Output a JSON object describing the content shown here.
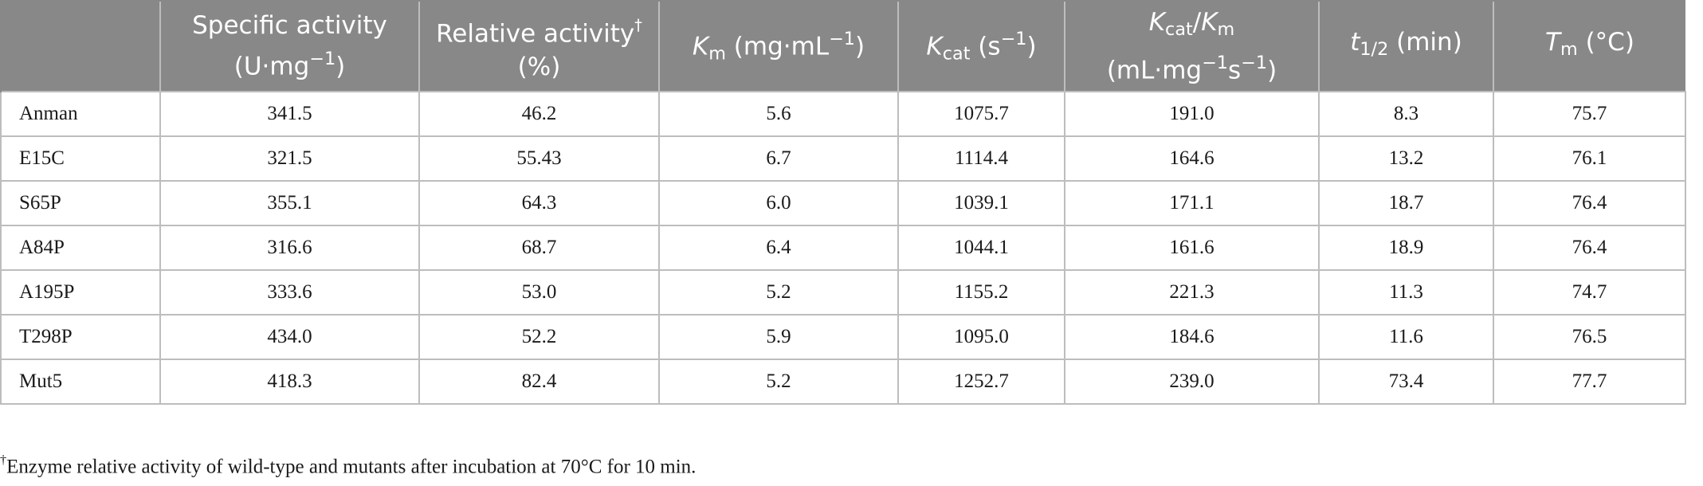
{
  "table": {
    "headers": {
      "specific_activity": {
        "line1": "Specific activity",
        "line2": "(U·mg",
        "exp": "−1",
        "line2_end": ")"
      },
      "relative_activity": {
        "line1": "Relative activity",
        "dagger": "†",
        "line2": "(%)"
      },
      "km": {
        "sym": "K",
        "sub": "m",
        "rest": " (mg·mL",
        "exp": "−1",
        "end": ")"
      },
      "kcat": {
        "sym": "K",
        "sub": "cat",
        "rest": " (s",
        "exp": "−1",
        "end": ")"
      },
      "kcat_km": {
        "sym1": "K",
        "sub1": "cat",
        "slash": "/",
        "sym2": "K",
        "sub2": "m",
        "line2a": "(mL·mg",
        "exp1": "−1",
        "line2b": "s",
        "exp2": "−1",
        "line2c": ")"
      },
      "half_life": {
        "sym": "t",
        "sub": "1/2",
        "rest": " (min)"
      },
      "tm": {
        "sym": "T",
        "sub": "m",
        "rest": " (°C)"
      }
    },
    "rows": [
      {
        "name": "Anman",
        "values": [
          "341.5",
          "46.2",
          "5.6",
          "1075.7",
          "191.0",
          "8.3",
          "75.7"
        ]
      },
      {
        "name": "E15C",
        "values": [
          "321.5",
          "55.43",
          "6.7",
          "1114.4",
          "164.6",
          "13.2",
          "76.1"
        ]
      },
      {
        "name": "S65P",
        "values": [
          "355.1",
          "64.3",
          "6.0",
          "1039.1",
          "171.1",
          "18.7",
          "76.4"
        ]
      },
      {
        "name": "A84P",
        "values": [
          "316.6",
          "68.7",
          "6.4",
          "1044.1",
          "161.6",
          "18.9",
          "76.4"
        ]
      },
      {
        "name": "A195P",
        "values": [
          "333.6",
          "53.0",
          "5.2",
          "1155.2",
          "221.3",
          "11.3",
          "74.7"
        ]
      },
      {
        "name": "T298P",
        "values": [
          "434.0",
          "52.2",
          "5.9",
          "1095.0",
          "184.6",
          "11.6",
          "76.5"
        ]
      },
      {
        "name": "Mut5",
        "values": [
          "418.3",
          "82.4",
          "5.2",
          "1252.7",
          "239.0",
          "73.4",
          "77.7"
        ]
      }
    ]
  },
  "footnote": {
    "dagger": "†",
    "text": "Enzyme relative activity of wild-type and mutants after incubation at 70°C for 10 min."
  }
}
